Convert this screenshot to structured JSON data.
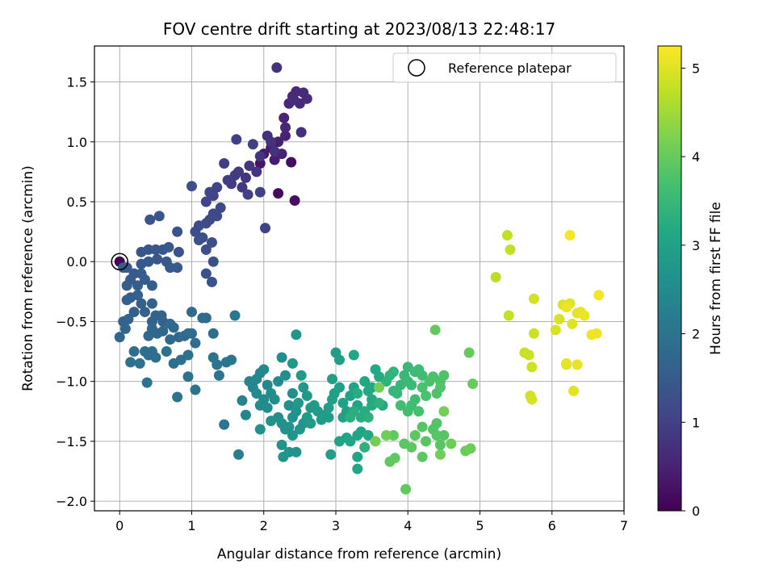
{
  "chart_data": {
    "type": "scatter",
    "title": "FOV centre drift starting at 2023/08/13 22:48:17",
    "xlabel": "Angular distance from reference (arcmin)",
    "ylabel": "Rotation from reference (arcmin)",
    "xlim": [
      -0.35,
      7.0
    ],
    "ylim": [
      -2.08,
      1.8
    ],
    "xticks": [
      0,
      1,
      2,
      3,
      4,
      5,
      6,
      7
    ],
    "yticks": [
      -2.0,
      -1.5,
      -1.0,
      -0.5,
      0.0,
      0.5,
      1.0,
      1.5
    ],
    "xtick_labels": [
      "0",
      "1",
      "2",
      "3",
      "4",
      "5",
      "6",
      "7"
    ],
    "ytick_labels": [
      "−2.0",
      "−1.5",
      "−1.0",
      "−0.5",
      "0.0",
      "0.5",
      "1.0",
      "1.5"
    ],
    "grid": true,
    "legend": {
      "placement": "top-right",
      "label": "Reference platepar"
    },
    "reference_point": {
      "x": 0,
      "y": 0
    },
    "colorbar": {
      "label": "Hours from first FF file",
      "colormap": "viridis",
      "range": [
        0,
        5.25
      ],
      "ticks": [
        0,
        1,
        2,
        3,
        4,
        5
      ],
      "tick_labels": [
        "0",
        "1",
        "2",
        "3",
        "4",
        "5"
      ]
    },
    "points": [
      [
        0.0,
        0.0,
        0.05
      ],
      [
        2.2,
        0.57,
        0.15
      ],
      [
        2.38,
        0.83,
        0.2
      ],
      [
        2.43,
        0.51,
        0.22
      ],
      [
        1.95,
        0.82,
        0.3
      ],
      [
        2.0,
        0.9,
        0.35
      ],
      [
        2.1,
        0.95,
        0.4
      ],
      [
        2.15,
        0.85,
        0.42
      ],
      [
        2.2,
        1.0,
        0.45
      ],
      [
        2.25,
        0.9,
        0.48
      ],
      [
        2.3,
        1.05,
        0.5
      ],
      [
        2.28,
        1.2,
        0.52
      ],
      [
        2.3,
        1.12,
        0.55
      ],
      [
        2.35,
        1.32,
        0.58
      ],
      [
        2.4,
        1.38,
        0.6
      ],
      [
        2.45,
        1.42,
        0.62
      ],
      [
        2.5,
        1.32,
        0.63
      ],
      [
        2.55,
        1.41,
        0.65
      ],
      [
        2.6,
        1.36,
        0.66
      ],
      [
        2.42,
        1.35,
        0.68
      ],
      [
        2.52,
        1.08,
        0.7
      ],
      [
        2.05,
        1.05,
        0.72
      ],
      [
        2.1,
        1.0,
        0.74
      ],
      [
        2.15,
        0.92,
        0.75
      ],
      [
        2.18,
        1.62,
        0.76
      ],
      [
        1.95,
        0.88,
        0.78
      ],
      [
        1.9,
        0.75,
        0.8
      ],
      [
        1.8,
        0.8,
        0.82
      ],
      [
        1.75,
        0.7,
        0.84
      ],
      [
        1.7,
        0.62,
        0.86
      ],
      [
        1.65,
        0.75,
        0.88
      ],
      [
        1.6,
        0.72,
        0.9
      ],
      [
        1.55,
        0.65,
        0.92
      ],
      [
        1.5,
        0.68,
        0.94
      ],
      [
        1.45,
        0.82,
        0.95
      ],
      [
        1.62,
        1.02,
        0.96
      ],
      [
        1.85,
        0.98,
        0.98
      ],
      [
        1.78,
        0.56,
        1.0
      ],
      [
        1.95,
        0.58,
        1.02
      ],
      [
        2.02,
        0.28,
        1.04
      ],
      [
        1.35,
        0.62,
        1.05
      ],
      [
        1.3,
        0.55,
        1.06
      ],
      [
        1.25,
        0.58,
        1.08
      ],
      [
        1.2,
        0.5,
        1.1
      ],
      [
        1.4,
        0.45,
        1.12
      ],
      [
        1.35,
        0.38,
        1.14
      ],
      [
        1.3,
        0.4,
        1.15
      ],
      [
        1.25,
        0.35,
        1.16
      ],
      [
        1.2,
        0.32,
        1.18
      ],
      [
        1.1,
        0.3,
        1.2
      ],
      [
        1.05,
        0.25,
        1.22
      ],
      [
        1.0,
        0.63,
        1.24
      ],
      [
        1.15,
        0.2,
        1.25
      ],
      [
        1.28,
        0.16,
        1.26
      ],
      [
        1.2,
        0.1,
        1.28
      ],
      [
        1.1,
        0.18,
        1.3
      ],
      [
        1.3,
        0.0,
        1.3
      ],
      [
        1.2,
        -0.1,
        1.32
      ],
      [
        1.28,
        -0.17,
        1.34
      ],
      [
        0.8,
        0.25,
        1.35
      ],
      [
        0.82,
        0.08,
        1.36
      ],
      [
        0.55,
        0.38,
        1.38
      ],
      [
        0.42,
        0.35,
        1.38
      ],
      [
        0.3,
        0.08,
        1.4
      ],
      [
        0.4,
        0.1,
        1.4
      ],
      [
        0.5,
        0.1,
        1.42
      ],
      [
        0.6,
        0.1,
        1.42
      ],
      [
        0.52,
        0.02,
        1.44
      ],
      [
        0.65,
        0.0,
        1.45
      ],
      [
        0.7,
        -0.05,
        1.46
      ],
      [
        0.8,
        -0.05,
        1.46
      ],
      [
        0.68,
        0.12,
        1.46
      ],
      [
        0.4,
        0.0,
        1.48
      ],
      [
        0.3,
        -0.02,
        1.48
      ],
      [
        0.3,
        -0.1,
        1.5
      ],
      [
        0.2,
        -0.1,
        1.5
      ],
      [
        0.1,
        -0.05,
        1.5
      ],
      [
        0.05,
        -0.05,
        1.52
      ],
      [
        0.15,
        -0.15,
        1.52
      ],
      [
        0.25,
        -0.2,
        1.54
      ],
      [
        0.35,
        -0.15,
        1.55
      ],
      [
        0.45,
        -0.2,
        1.55
      ],
      [
        0.1,
        -0.2,
        1.56
      ],
      [
        0.15,
        -0.3,
        1.56
      ],
      [
        0.25,
        -0.28,
        1.58
      ],
      [
        0.3,
        -0.35,
        1.58
      ],
      [
        0.2,
        -0.42,
        1.6
      ],
      [
        0.1,
        -0.32,
        1.6
      ],
      [
        0.35,
        -0.42,
        1.62
      ],
      [
        0.45,
        -0.35,
        1.62
      ],
      [
        0.5,
        -0.45,
        1.64
      ],
      [
        0.58,
        -0.45,
        1.64
      ],
      [
        0.6,
        -0.5,
        1.66
      ],
      [
        0.45,
        -0.5,
        1.66
      ],
      [
        0.12,
        -0.48,
        1.68
      ],
      [
        0.05,
        -0.5,
        1.68
      ],
      [
        0.08,
        -0.56,
        1.7
      ],
      [
        0.0,
        -0.63,
        1.7
      ],
      [
        0.4,
        -0.62,
        1.72
      ],
      [
        0.45,
        -0.56,
        1.72
      ],
      [
        0.52,
        -0.6,
        1.74
      ],
      [
        0.6,
        -0.58,
        1.74
      ],
      [
        0.7,
        -0.52,
        1.76
      ],
      [
        0.75,
        -0.55,
        1.76
      ],
      [
        0.7,
        -0.65,
        1.78
      ],
      [
        0.82,
        -0.63,
        1.78
      ],
      [
        0.9,
        -0.62,
        1.8
      ],
      [
        1.0,
        -0.42,
        1.8
      ],
      [
        1.15,
        -0.47,
        1.82
      ],
      [
        1.2,
        -0.47,
        1.82
      ],
      [
        0.95,
        -0.6,
        1.84
      ],
      [
        1.0,
        -0.6,
        1.84
      ],
      [
        1.05,
        -0.68,
        1.86
      ],
      [
        1.3,
        -0.6,
        1.86
      ],
      [
        0.2,
        -0.75,
        1.88
      ],
      [
        0.35,
        -0.75,
        1.88
      ],
      [
        0.4,
        -0.78,
        1.9
      ],
      [
        0.45,
        -0.75,
        1.9
      ],
      [
        0.5,
        -0.8,
        1.92
      ],
      [
        0.65,
        -0.75,
        1.92
      ],
      [
        0.75,
        -0.85,
        1.94
      ],
      [
        0.85,
        -0.82,
        1.94
      ],
      [
        0.95,
        -0.78,
        1.96
      ],
      [
        0.15,
        -0.84,
        1.96
      ],
      [
        0.28,
        -0.85,
        1.98
      ],
      [
        0.95,
        -0.96,
        1.98
      ],
      [
        0.38,
        -1.01,
        2.0
      ],
      [
        0.8,
        -1.13,
        2.0
      ],
      [
        1.05,
        -1.07,
        2.02
      ],
      [
        1.3,
        -0.8,
        2.02
      ],
      [
        1.35,
        -0.86,
        2.04
      ],
      [
        1.38,
        -0.95,
        2.04
      ],
      [
        1.48,
        -0.84,
        2.06
      ],
      [
        1.55,
        -0.82,
        2.06
      ],
      [
        1.45,
        -1.36,
        2.08
      ],
      [
        1.6,
        -0.45,
        2.1
      ],
      [
        1.65,
        -1.61,
        2.2
      ],
      [
        1.7,
        -1.16,
        2.3
      ],
      [
        1.8,
        -1.0,
        2.35
      ],
      [
        1.75,
        -1.28,
        2.38
      ],
      [
        1.85,
        -1.05,
        2.4
      ],
      [
        1.9,
        -0.98,
        2.42
      ],
      [
        1.95,
        -0.93,
        2.44
      ],
      [
        2.0,
        -0.9,
        2.45
      ],
      [
        2.05,
        -1.03,
        2.46
      ],
      [
        1.9,
        -1.1,
        2.48
      ],
      [
        1.95,
        -1.2,
        2.5
      ],
      [
        2.0,
        -1.15,
        2.5
      ],
      [
        2.05,
        -1.22,
        2.52
      ],
      [
        2.1,
        -1.1,
        2.52
      ],
      [
        2.15,
        -1.15,
        2.54
      ],
      [
        2.2,
        -1.0,
        2.55
      ],
      [
        2.25,
        -0.8,
        2.56
      ],
      [
        2.3,
        -0.95,
        2.58
      ],
      [
        2.35,
        -1.2,
        2.58
      ],
      [
        2.4,
        -1.1,
        2.6
      ],
      [
        2.2,
        -1.3,
        2.6
      ],
      [
        2.25,
        -1.35,
        2.62
      ],
      [
        2.3,
        -1.4,
        2.62
      ],
      [
        2.35,
        -1.38,
        2.64
      ],
      [
        2.4,
        -1.3,
        2.65
      ],
      [
        2.45,
        -1.25,
        2.66
      ],
      [
        2.1,
        -1.33,
        2.66
      ],
      [
        1.95,
        -1.4,
        2.68
      ],
      [
        2.25,
        -1.53,
        2.68
      ],
      [
        2.27,
        -1.63,
        2.7
      ],
      [
        2.35,
        -1.59,
        2.7
      ],
      [
        2.45,
        -1.59,
        2.72
      ],
      [
        2.4,
        -1.45,
        2.72
      ],
      [
        2.5,
        -1.4,
        2.74
      ],
      [
        2.55,
        -1.35,
        2.74
      ],
      [
        2.4,
        -0.85,
        2.76
      ],
      [
        2.45,
        -0.61,
        2.76
      ],
      [
        2.48,
        -1.18,
        2.78
      ],
      [
        2.55,
        -1.05,
        2.78
      ],
      [
        2.6,
        -1.12,
        2.8
      ],
      [
        2.65,
        -1.22,
        2.8
      ],
      [
        2.52,
        -0.95,
        2.82
      ],
      [
        2.6,
        -1.3,
        2.82
      ],
      [
        2.65,
        -1.35,
        2.84
      ],
      [
        2.7,
        -1.2,
        2.85
      ],
      [
        2.75,
        -1.25,
        2.86
      ],
      [
        2.8,
        -1.32,
        2.86
      ],
      [
        2.85,
        -1.28,
        2.88
      ],
      [
        2.9,
        -1.3,
        2.88
      ],
      [
        2.9,
        -1.22,
        2.9
      ],
      [
        2.95,
        -1.15,
        2.9
      ],
      [
        2.93,
        -1.61,
        2.92
      ],
      [
        3.0,
        -0.76,
        2.92
      ],
      [
        3.05,
        -0.82,
        2.94
      ],
      [
        2.95,
        -0.98,
        2.94
      ],
      [
        2.98,
        -1.1,
        2.96
      ],
      [
        3.05,
        -1.05,
        2.96
      ],
      [
        3.1,
        -1.18,
        2.98
      ],
      [
        3.1,
        -1.3,
        2.98
      ],
      [
        3.15,
        -1.25,
        3.0
      ],
      [
        3.2,
        -1.12,
        3.0
      ],
      [
        3.25,
        -1.05,
        3.02
      ],
      [
        3.3,
        -1.2,
        3.02
      ],
      [
        3.05,
        -1.5,
        3.04
      ],
      [
        3.15,
        -1.47,
        3.04
      ],
      [
        3.2,
        -1.5,
        3.06
      ],
      [
        3.3,
        -1.45,
        3.06
      ],
      [
        3.35,
        -1.42,
        3.08
      ],
      [
        3.3,
        -1.63,
        3.08
      ],
      [
        3.3,
        -1.73,
        3.1
      ],
      [
        3.25,
        -0.78,
        3.1
      ],
      [
        3.4,
        -1.0,
        3.12
      ],
      [
        3.45,
        -1.08,
        3.12
      ],
      [
        3.5,
        -1.15,
        3.14
      ],
      [
        3.45,
        -1.45,
        3.14
      ],
      [
        3.5,
        -1.05,
        3.16
      ],
      [
        3.55,
        -0.9,
        3.16
      ],
      [
        3.6,
        -0.96,
        3.18
      ],
      [
        3.65,
        -1.2,
        3.18
      ],
      [
        3.5,
        -1.2,
        3.2
      ],
      [
        3.4,
        -1.25,
        3.22
      ],
      [
        3.35,
        -1.3,
        3.24
      ],
      [
        3.3,
        -1.1,
        3.26
      ],
      [
        3.25,
        -1.25,
        3.28
      ],
      [
        3.2,
        -1.3,
        3.3
      ],
      [
        3.45,
        -1.3,
        3.32
      ],
      [
        3.4,
        -1.55,
        3.34
      ],
      [
        3.6,
        -1.18,
        3.36
      ],
      [
        3.7,
        -1.0,
        3.38
      ],
      [
        3.75,
        -0.95,
        3.4
      ],
      [
        3.8,
        -0.92,
        3.42
      ],
      [
        3.8,
        -1.08,
        3.44
      ],
      [
        3.85,
        -1.1,
        3.46
      ],
      [
        3.9,
        -1.03,
        3.48
      ],
      [
        3.95,
        -0.95,
        3.5
      ],
      [
        4.0,
        -0.88,
        3.5
      ],
      [
        4.0,
        -1.0,
        3.52
      ],
      [
        4.05,
        -1.03,
        3.54
      ],
      [
        4.1,
        -0.92,
        3.56
      ],
      [
        4.15,
        -0.9,
        3.58
      ],
      [
        4.2,
        -0.95,
        3.6
      ],
      [
        4.1,
        -1.15,
        3.6
      ],
      [
        4.05,
        -1.2,
        3.62
      ],
      [
        4.0,
        -1.25,
        3.64
      ],
      [
        3.9,
        -1.2,
        3.66
      ],
      [
        4.15,
        -1.25,
        3.68
      ],
      [
        4.2,
        -1.05,
        3.7
      ],
      [
        4.25,
        -1.12,
        3.72
      ],
      [
        4.3,
        -1.0,
        3.72
      ],
      [
        4.35,
        -0.96,
        3.74
      ],
      [
        4.4,
        -1.1,
        3.76
      ],
      [
        4.45,
        -1.0,
        3.76
      ],
      [
        4.5,
        -0.95,
        3.78
      ],
      [
        4.45,
        -1.05,
        3.8
      ],
      [
        4.4,
        -1.35,
        3.82
      ],
      [
        4.35,
        -1.4,
        3.82
      ],
      [
        4.4,
        -1.45,
        3.84
      ],
      [
        4.45,
        -1.53,
        3.84
      ],
      [
        4.5,
        -1.45,
        3.86
      ],
      [
        4.2,
        -1.38,
        3.86
      ],
      [
        4.25,
        -1.5,
        3.88
      ],
      [
        3.95,
        -1.52,
        3.9
      ],
      [
        4.1,
        -1.45,
        3.9
      ],
      [
        4.05,
        -1.55,
        3.92
      ],
      [
        4.2,
        -1.63,
        3.92
      ],
      [
        3.8,
        -1.45,
        3.94
      ],
      [
        3.75,
        -1.67,
        3.94
      ],
      [
        3.82,
        -1.64,
        3.96
      ],
      [
        3.97,
        -1.9,
        3.96
      ],
      [
        4.38,
        -0.57,
        3.98
      ],
      [
        4.85,
        -0.76,
        4.0
      ],
      [
        4.9,
        -1.02,
        4.02
      ],
      [
        4.8,
        -1.58,
        4.04
      ],
      [
        4.87,
        -1.56,
        4.06
      ],
      [
        4.6,
        -1.52,
        4.08
      ],
      [
        4.45,
        -1.61,
        4.1
      ],
      [
        3.7,
        -1.45,
        4.1
      ],
      [
        3.55,
        -1.5,
        4.12
      ],
      [
        3.6,
        -1.05,
        4.12
      ],
      [
        4.5,
        -1.25,
        4.14
      ],
      [
        5.22,
        -0.13,
        4.7
      ],
      [
        5.38,
        0.22,
        4.75
      ],
      [
        5.42,
        0.1,
        4.78
      ],
      [
        5.4,
        -0.45,
        4.8
      ],
      [
        5.62,
        -0.76,
        4.82
      ],
      [
        5.68,
        -0.78,
        4.84
      ],
      [
        5.72,
        -0.88,
        4.86
      ],
      [
        5.75,
        -0.31,
        4.88
      ],
      [
        5.7,
        -1.12,
        4.9
      ],
      [
        5.72,
        -1.15,
        4.92
      ],
      [
        6.05,
        -0.57,
        4.94
      ],
      [
        6.1,
        -0.48,
        4.95
      ],
      [
        6.15,
        -0.36,
        4.96
      ],
      [
        6.2,
        -0.86,
        4.98
      ],
      [
        6.25,
        -0.35,
        5.0
      ],
      [
        6.28,
        -0.52,
        5.0
      ],
      [
        6.3,
        -1.08,
        5.02
      ],
      [
        6.35,
        -0.43,
        5.04
      ],
      [
        6.35,
        -0.86,
        5.06
      ],
      [
        6.4,
        -0.42,
        5.08
      ],
      [
        6.45,
        -0.45,
        5.1
      ],
      [
        6.55,
        -0.61,
        5.12
      ],
      [
        6.62,
        -0.6,
        5.14
      ],
      [
        6.65,
        -0.28,
        5.16
      ],
      [
        6.25,
        0.22,
        5.18
      ],
      [
        6.2,
        -0.38,
        5.1
      ],
      [
        6.2,
        -0.85,
        5.05
      ],
      [
        5.75,
        -0.6,
        4.85
      ]
    ]
  }
}
